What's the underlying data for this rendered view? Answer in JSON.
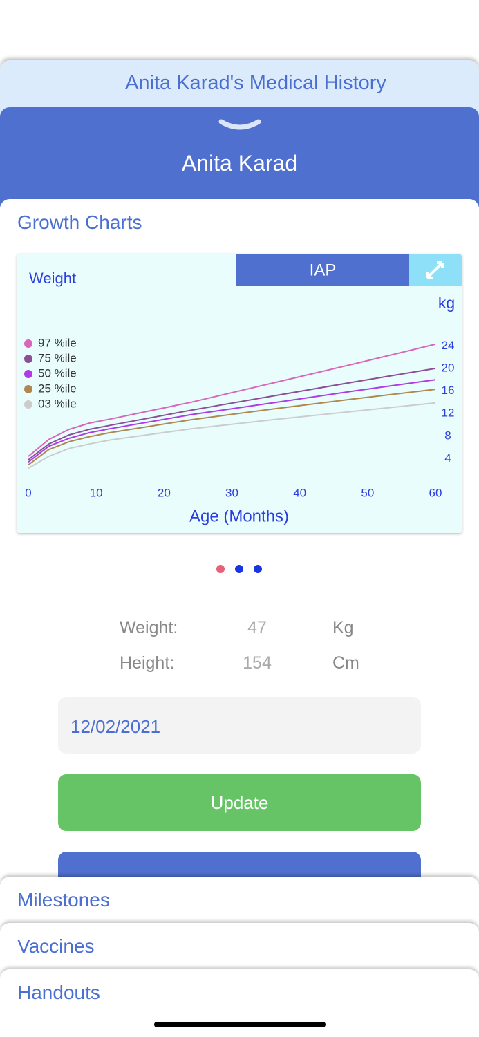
{
  "header": {
    "title": "Anita Karad's Medical History",
    "patient": "Anita Karad"
  },
  "section": "Growth Charts",
  "chart_data": {
    "type": "line",
    "title": "Weight",
    "badge": "IAP",
    "y_unit": "kg",
    "x_label": "Age (Months)",
    "x": [
      0,
      3,
      6,
      9,
      12,
      24,
      36,
      48,
      60
    ],
    "xlim": [
      0,
      60
    ],
    "xticks": [
      0,
      10,
      20,
      30,
      40,
      50,
      60
    ],
    "ylim": [
      0,
      26
    ],
    "yticks": [
      4,
      8,
      12,
      16,
      20,
      24
    ],
    "series": [
      {
        "name": "97 %ile",
        "color": "#d966b8",
        "values": [
          4.4,
          7.4,
          9.2,
          10.3,
          11.0,
          14.0,
          17.4,
          20.8,
          24.3
        ]
      },
      {
        "name": "75 %ile",
        "color": "#8a4f95",
        "values": [
          3.8,
          6.6,
          8.2,
          9.2,
          9.9,
          12.6,
          15.1,
          17.6,
          20.0
        ]
      },
      {
        "name": "50 %ile",
        "color": "#b03ae6",
        "values": [
          3.4,
          6.2,
          7.6,
          8.6,
          9.3,
          11.8,
          13.9,
          16.0,
          18.0
        ]
      },
      {
        "name": "25 %ile",
        "color": "#b0884f",
        "values": [
          2.9,
          5.6,
          7.0,
          7.9,
          8.6,
          10.9,
          12.8,
          14.6,
          16.3
        ]
      },
      {
        "name": "03 %ile",
        "color": "#cccccc",
        "values": [
          2.3,
          4.4,
          5.8,
          6.6,
          7.3,
          9.3,
          10.9,
          12.4,
          13.9
        ]
      }
    ]
  },
  "measurements": [
    {
      "label": "Weight:",
      "value": "47",
      "unit": "Kg"
    },
    {
      "label": "Height:",
      "value": "154",
      "unit": "Cm"
    }
  ],
  "date": "12/02/2021",
  "update_button": "Update",
  "tabs": [
    "Milestones",
    "Vaccines",
    "Handouts"
  ]
}
